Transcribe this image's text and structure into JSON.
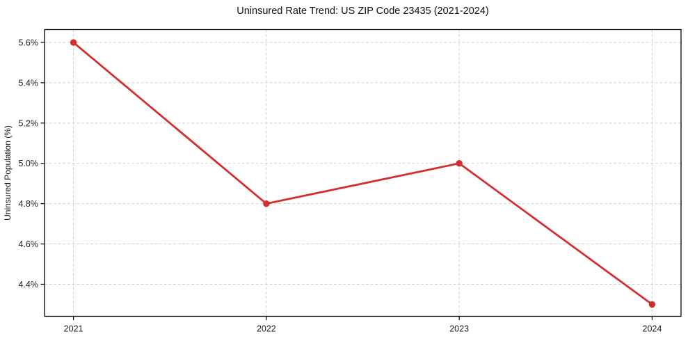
{
  "chart_data": {
    "type": "line",
    "title": "Uninsured Rate Trend: US ZIP Code 23435 (2021-2024)",
    "xlabel": "",
    "ylabel": "Uninsured Population (%)",
    "x": [
      2021,
      2022,
      2023,
      2024
    ],
    "x_tick_labels": [
      "2021",
      "2022",
      "2023",
      "2024"
    ],
    "series": [
      {
        "name": "uninsured-rate",
        "values": [
          5.6,
          4.8,
          5.0,
          4.3
        ],
        "color": "#d32f2f"
      }
    ],
    "y_ticks": [
      4.4,
      4.6,
      4.8,
      5.0,
      5.2,
      5.4,
      5.6
    ],
    "y_tick_labels": [
      "4.4%",
      "4.6%",
      "4.8%",
      "5.0%",
      "5.2%",
      "5.4%",
      "5.6%"
    ],
    "xlim": [
      2020.85,
      2024.15
    ],
    "ylim": [
      4.241,
      5.664
    ],
    "grid": true,
    "legend_position": "none",
    "style": {
      "grid_color": "#d0d0d0",
      "grid_dash": "4 2.6",
      "frame_color": "#000000",
      "tick_color": "#000000",
      "line_width": 2.8,
      "marker": "circle",
      "marker_radius": 4.7,
      "background": "#ffffff"
    }
  }
}
